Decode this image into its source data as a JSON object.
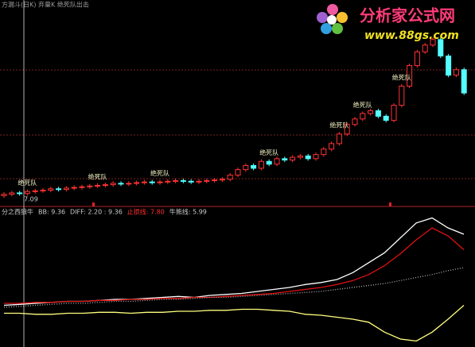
{
  "title_bar": "方漏斗(日K) 弃量K 绝死队出击",
  "watermark": {
    "name": "分析家公式网",
    "url": "www.88gs.com"
  },
  "chart_data": [
    {
      "type": "candlestick",
      "up_color": "#ff3232",
      "down_color": "#54ffff",
      "ylim": [
        6.5,
        21
      ],
      "open": [
        7.0,
        7.1,
        7.2,
        7.15,
        7.3,
        7.35,
        7.4,
        7.5,
        7.45,
        7.55,
        7.6,
        7.65,
        7.7,
        7.75,
        7.8,
        7.9,
        7.85,
        7.9,
        7.95,
        8.0,
        7.95,
        8.0,
        8.05,
        8.1,
        8.05,
        8.0,
        8.05,
        8.1,
        8.15,
        8.2,
        8.5,
        8.9,
        9.2,
        9.0,
        9.5,
        9.3,
        9.7,
        9.6,
        9.8,
        9.9,
        9.7,
        10.0,
        10.4,
        10.8,
        11.5,
        12.2,
        12.6,
        13.0,
        13.2,
        12.8,
        12.5,
        13.6,
        15.0,
        16.5,
        17.5,
        18.0,
        18.4,
        17.2,
        15.8,
        16.2
      ],
      "high": [
        7.25,
        7.35,
        7.35,
        7.45,
        7.5,
        7.55,
        7.65,
        7.65,
        7.7,
        7.75,
        7.8,
        7.85,
        7.9,
        7.95,
        8.05,
        8.05,
        8.05,
        8.1,
        8.15,
        8.15,
        8.15,
        8.2,
        8.25,
        8.25,
        8.2,
        8.2,
        8.25,
        8.3,
        8.35,
        8.65,
        9.05,
        9.35,
        9.35,
        9.65,
        9.65,
        9.85,
        9.85,
        9.95,
        10.05,
        10.05,
        10.15,
        10.55,
        10.95,
        11.65,
        12.35,
        12.75,
        13.15,
        13.35,
        13.35,
        12.95,
        13.75,
        15.15,
        16.65,
        17.65,
        18.15,
        18.55,
        18.55,
        17.35,
        16.35,
        16.35
      ],
      "low": [
        6.85,
        6.95,
        7.0,
        7.0,
        7.15,
        7.2,
        7.25,
        7.3,
        7.3,
        7.4,
        7.45,
        7.5,
        7.55,
        7.6,
        7.65,
        7.7,
        7.7,
        7.75,
        7.8,
        7.8,
        7.8,
        7.85,
        7.9,
        7.9,
        7.85,
        7.85,
        7.9,
        7.95,
        8.0,
        8.05,
        8.35,
        8.75,
        8.85,
        8.85,
        9.15,
        9.15,
        9.45,
        9.45,
        9.65,
        9.55,
        9.55,
        9.85,
        10.25,
        10.65,
        11.35,
        12.05,
        12.45,
        12.85,
        12.65,
        12.35,
        12.35,
        13.45,
        14.85,
        16.35,
        17.35,
        17.85,
        17.05,
        15.65,
        15.65,
        14.35
      ],
      "close": [
        7.1,
        7.2,
        7.15,
        7.3,
        7.35,
        7.4,
        7.5,
        7.45,
        7.55,
        7.6,
        7.65,
        7.7,
        7.75,
        7.8,
        7.9,
        7.85,
        7.9,
        7.95,
        8.0,
        7.95,
        8.0,
        8.05,
        8.1,
        8.05,
        8.0,
        8.05,
        8.1,
        8.15,
        8.2,
        8.5,
        8.9,
        9.2,
        9.0,
        9.5,
        9.3,
        9.7,
        9.6,
        9.8,
        9.9,
        9.7,
        10.0,
        10.4,
        10.8,
        11.5,
        12.2,
        12.6,
        13.0,
        13.2,
        12.8,
        12.5,
        13.6,
        15.0,
        16.5,
        17.5,
        18.0,
        18.4,
        17.2,
        15.8,
        16.2,
        14.5
      ],
      "low_marker": 7.09,
      "annotations": [
        {
          "at": 3,
          "label": "绝死队"
        },
        {
          "at": 12,
          "label": "绝死队"
        },
        {
          "at": 20,
          "label": "绝死队"
        },
        {
          "at": 34,
          "label": "绝死队"
        },
        {
          "at": 43,
          "label": "绝死队"
        },
        {
          "at": 46,
          "label": "绝死队"
        },
        {
          "at": 51,
          "label": "绝死队"
        }
      ]
    },
    {
      "type": "line",
      "ylim": [
        -2,
        12
      ],
      "header": [
        "分之西狼牛",
        "BB: 9.36",
        "DIFF: 2.20 : 9.36",
        "止损线: 7.80",
        "牛熊线: 5.99"
      ],
      "series": [
        {
          "name": "BB",
          "color": "#ffffff",
          "values": [
            2.2,
            2.3,
            2.4,
            2.5,
            2.6,
            2.6,
            2.7,
            2.8,
            2.8,
            2.9,
            3.0,
            3.1,
            3.0,
            3.2,
            3.3,
            3.4,
            3.6,
            3.8,
            4.0,
            4.3,
            4.5,
            4.8,
            5.5,
            6.5,
            7.5,
            9.0,
            10.5,
            11.0,
            10.0,
            9.36
          ]
        },
        {
          "name": "止损线",
          "color": "#e01010",
          "values": [
            2.4,
            2.4,
            2.5,
            2.5,
            2.6,
            2.6,
            2.7,
            2.7,
            2.8,
            2.8,
            2.9,
            2.9,
            3.0,
            3.0,
            3.1,
            3.2,
            3.3,
            3.4,
            3.6,
            3.8,
            4.0,
            4.3,
            4.7,
            5.3,
            6.2,
            7.4,
            8.8,
            10.0,
            9.2,
            7.8
          ]
        },
        {
          "name": "牛熊线",
          "color": "#b0b0b0",
          "dashed": true,
          "values": [
            2.0,
            2.1,
            2.2,
            2.3,
            2.4,
            2.4,
            2.5,
            2.6,
            2.6,
            2.7,
            2.8,
            2.8,
            2.9,
            3.0,
            3.0,
            3.1,
            3.2,
            3.3,
            3.4,
            3.5,
            3.6,
            3.8,
            4.0,
            4.2,
            4.4,
            4.7,
            5.0,
            5.3,
            5.7,
            5.99
          ]
        },
        {
          "name": "DIFF",
          "color": "#ffff80",
          "values": [
            1.4,
            1.4,
            1.3,
            1.3,
            1.4,
            1.4,
            1.5,
            1.5,
            1.4,
            1.5,
            1.5,
            1.6,
            1.6,
            1.7,
            1.7,
            1.8,
            1.8,
            1.7,
            1.6,
            1.3,
            1.2,
            1.0,
            0.8,
            0.5,
            -0.5,
            -1.2,
            -1.4,
            -0.5,
            0.8,
            2.2
          ]
        }
      ]
    }
  ]
}
